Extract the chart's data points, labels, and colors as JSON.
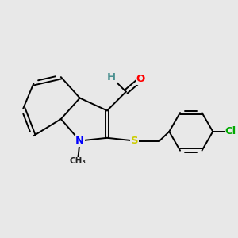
{
  "background_color": "#e8e8e8",
  "bond_color": "#000000",
  "atom_colors": {
    "O": "#ff0000",
    "N": "#0000ff",
    "S": "#cccc00",
    "Cl": "#00aa00",
    "H": "#4a9090",
    "C": "#000000"
  },
  "figsize": [
    3.0,
    3.0
  ],
  "dpi": 100
}
